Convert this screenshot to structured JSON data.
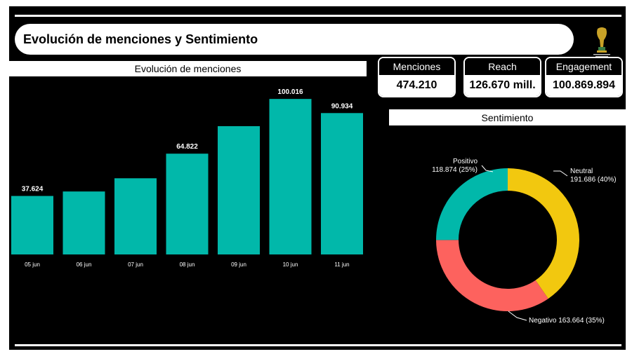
{
  "header": {
    "title": "Evolución de menciones y Sentimiento"
  },
  "bar_section": {
    "title": "Evolución de menciones"
  },
  "pie_section": {
    "title": "Sentimiento"
  },
  "kpis": [
    {
      "label": "Menciones",
      "value": "474.210"
    },
    {
      "label": "Reach",
      "value": "126.670 mill."
    },
    {
      "label": "Engagement",
      "value": "100.869.894"
    }
  ],
  "colors": {
    "bar": "#01b8aa",
    "positivo": "#01b8aa",
    "negativo": "#fd625e",
    "neutral": "#f2c80f"
  },
  "chart_data": [
    {
      "type": "bar",
      "title": "Evolución de menciones",
      "categories": [
        "05 jun",
        "06 jun",
        "07 jun",
        "08 jun",
        "09 jun",
        "10 jun",
        "11 jun"
      ],
      "values": [
        37624,
        40500,
        49000,
        64822,
        82500,
        100016,
        90934
      ],
      "data_labels": [
        "37.624",
        "",
        "",
        "64.822",
        "",
        "100.016",
        "90.934"
      ],
      "ylim": [
        0,
        110000
      ],
      "grid": false,
      "xlabel": "",
      "ylabel": ""
    },
    {
      "type": "pie",
      "title": "Sentimiento",
      "donut": true,
      "slices": [
        {
          "label": "Neutral",
          "value": 191686,
          "text": "191.686 (40%)",
          "color": "#f2c80f"
        },
        {
          "label": "Negativo",
          "value": 163664,
          "text": "163.664 (35%)",
          "color": "#fd625e"
        },
        {
          "label": "Positivo",
          "value": 118874,
          "text": "118.874 (25%)",
          "color": "#01b8aa"
        }
      ]
    }
  ]
}
